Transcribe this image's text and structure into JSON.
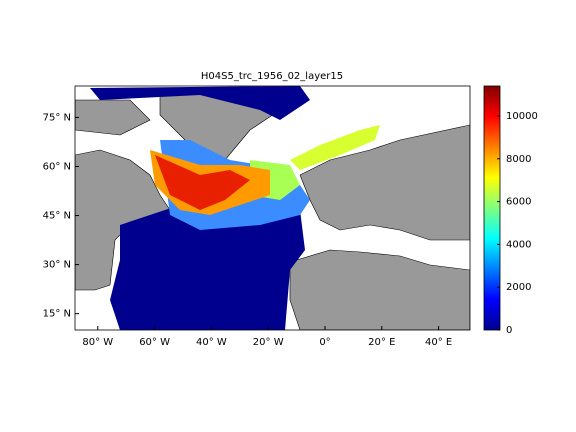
{
  "map": {
    "title": "H04S5_trc_1956_02_layer15",
    "latticks": [
      {
        "value": 75,
        "label": "75° N"
      },
      {
        "value": 60,
        "label": "60° N"
      },
      {
        "value": 45,
        "label": "45° N"
      },
      {
        "value": 30,
        "label": "30° N"
      },
      {
        "value": 15,
        "label": "15° N"
      }
    ],
    "lonticks": [
      {
        "value": -80,
        "label": "80° W"
      },
      {
        "value": -60,
        "label": "60° W"
      },
      {
        "value": -40,
        "label": "40° W"
      },
      {
        "value": -20,
        "label": "20° W"
      },
      {
        "value": 0,
        "label": "0°"
      },
      {
        "value": 20,
        "label": "20° E"
      },
      {
        "value": 40,
        "label": "40° E"
      }
    ]
  },
  "colorbar": {
    "lim": [
      0,
      11400
    ],
    "ticks": [
      0,
      2000,
      4000,
      6000,
      8000,
      10000
    ]
  }
}
